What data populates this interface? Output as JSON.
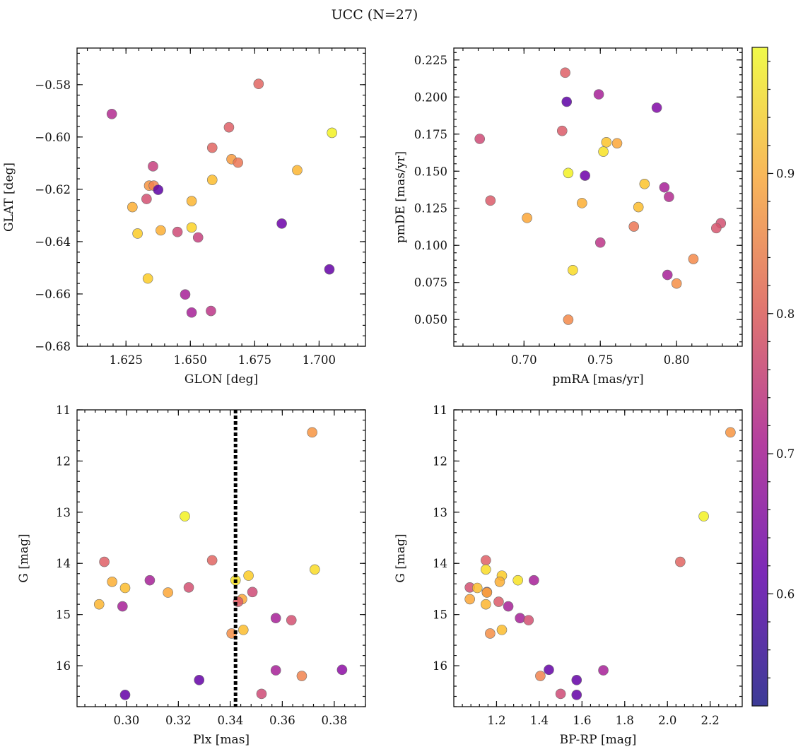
{
  "figure": {
    "suptitle": "UCC (N=27)"
  },
  "chart_data": [
    {
      "type": "scatter",
      "xlabel": "GLON [deg]",
      "ylabel": "GLAT [deg]",
      "xlim": [
        1.606,
        1.718
      ],
      "ylim": [
        -0.68,
        -0.566
      ],
      "y_inverted": false,
      "xticks": [
        1.625,
        1.65,
        1.675,
        1.7
      ],
      "xtick_labels": [
        "1.625",
        "1.650",
        "1.675",
        "1.700"
      ],
      "yticks": [
        -0.68,
        -0.66,
        -0.64,
        -0.62,
        -0.6,
        -0.58
      ],
      "ytick_labels": [
        "−0.68",
        "−0.66",
        "−0.64",
        "−0.62",
        "−0.60",
        "−0.58"
      ],
      "points": [
        {
          "x": 1.6195,
          "y": -0.5912,
          "c": 0.66
        },
        {
          "x": 1.6765,
          "y": -0.5797,
          "c": 0.77
        },
        {
          "x": 1.705,
          "y": -0.5984,
          "c": 0.98
        },
        {
          "x": 1.665,
          "y": -0.5963,
          "c": 0.76
        },
        {
          "x": 1.6585,
          "y": -0.6041,
          "c": 0.77
        },
        {
          "x": 1.666,
          "y": -0.6085,
          "c": 0.86
        },
        {
          "x": 1.6685,
          "y": -0.6098,
          "c": 0.8
        },
        {
          "x": 1.6355,
          "y": -0.6112,
          "c": 0.7
        },
        {
          "x": 1.6585,
          "y": -0.6164,
          "c": 0.91
        },
        {
          "x": 1.6915,
          "y": -0.6127,
          "c": 0.9
        },
        {
          "x": 1.634,
          "y": -0.6186,
          "c": 0.85
        },
        {
          "x": 1.6358,
          "y": -0.6186,
          "c": 0.82
        },
        {
          "x": 1.6375,
          "y": -0.6202,
          "c": 0.53
        },
        {
          "x": 1.633,
          "y": -0.6237,
          "c": 0.73
        },
        {
          "x": 1.6505,
          "y": -0.6245,
          "c": 0.9
        },
        {
          "x": 1.6275,
          "y": -0.6268,
          "c": 0.89
        },
        {
          "x": 1.6505,
          "y": -0.6346,
          "c": 0.94
        },
        {
          "x": 1.6385,
          "y": -0.6357,
          "c": 0.89
        },
        {
          "x": 1.645,
          "y": -0.6363,
          "c": 0.72
        },
        {
          "x": 1.6295,
          "y": -0.6369,
          "c": 0.93
        },
        {
          "x": 1.653,
          "y": -0.6384,
          "c": 0.7
        },
        {
          "x": 1.6855,
          "y": -0.6331,
          "c": 0.55
        },
        {
          "x": 1.704,
          "y": -0.6506,
          "c": 0.54
        },
        {
          "x": 1.6335,
          "y": -0.6541,
          "c": 0.93
        },
        {
          "x": 1.648,
          "y": -0.6602,
          "c": 0.64
        },
        {
          "x": 1.6505,
          "y": -0.6671,
          "c": 0.64
        },
        {
          "x": 1.658,
          "y": -0.6665,
          "c": 0.68
        }
      ]
    },
    {
      "type": "scatter",
      "xlabel": "pmRA [mas/yr]",
      "ylabel": "pmDE [mas/yr]",
      "xlim": [
        0.654,
        0.843
      ],
      "ylim": [
        0.032,
        0.233
      ],
      "y_inverted": false,
      "xticks": [
        0.7,
        0.75,
        0.8
      ],
      "xtick_labels": [
        "0.70",
        "0.75",
        "0.80"
      ],
      "yticks": [
        0.05,
        0.075,
        0.1,
        0.125,
        0.15,
        0.175,
        0.2,
        0.225
      ],
      "ytick_labels": [
        "0.050",
        "0.075",
        "0.100",
        "0.125",
        "0.150",
        "0.175",
        "0.200",
        "0.225"
      ],
      "points": [
        {
          "x": 0.727,
          "y": 0.2164,
          "c": 0.76
        },
        {
          "x": 0.749,
          "y": 0.2018,
          "c": 0.64
        },
        {
          "x": 0.728,
          "y": 0.1968,
          "c": 0.53
        },
        {
          "x": 0.787,
          "y": 0.1928,
          "c": 0.58
        },
        {
          "x": 0.725,
          "y": 0.1772,
          "c": 0.75
        },
        {
          "x": 0.671,
          "y": 0.1718,
          "c": 0.72
        },
        {
          "x": 0.754,
          "y": 0.1695,
          "c": 0.92
        },
        {
          "x": 0.761,
          "y": 0.1688,
          "c": 0.88
        },
        {
          "x": 0.752,
          "y": 0.1632,
          "c": 0.96
        },
        {
          "x": 0.729,
          "y": 0.1488,
          "c": 0.98
        },
        {
          "x": 0.74,
          "y": 0.147,
          "c": 0.55
        },
        {
          "x": 0.779,
          "y": 0.1414,
          "c": 0.92
        },
        {
          "x": 0.792,
          "y": 0.1391,
          "c": 0.64
        },
        {
          "x": 0.795,
          "y": 0.1327,
          "c": 0.66
        },
        {
          "x": 0.678,
          "y": 0.1302,
          "c": 0.75
        },
        {
          "x": 0.738,
          "y": 0.1285,
          "c": 0.89
        },
        {
          "x": 0.775,
          "y": 0.1258,
          "c": 0.91
        },
        {
          "x": 0.829,
          "y": 0.1149,
          "c": 0.73
        },
        {
          "x": 0.772,
          "y": 0.1127,
          "c": 0.8
        },
        {
          "x": 0.826,
          "y": 0.1116,
          "c": 0.74
        },
        {
          "x": 0.702,
          "y": 0.1185,
          "c": 0.88
        },
        {
          "x": 0.75,
          "y": 0.1019,
          "c": 0.68
        },
        {
          "x": 0.811,
          "y": 0.0908,
          "c": 0.83
        },
        {
          "x": 0.732,
          "y": 0.0833,
          "c": 0.95
        },
        {
          "x": 0.794,
          "y": 0.0801,
          "c": 0.64
        },
        {
          "x": 0.8,
          "y": 0.0743,
          "c": 0.84
        },
        {
          "x": 0.729,
          "y": 0.0499,
          "c": 0.83
        }
      ]
    },
    {
      "type": "scatter",
      "xlabel": "Plx [mas]",
      "ylabel": "G [mag]",
      "xlim": [
        0.281,
        0.392
      ],
      "ylim": [
        11.0,
        16.8
      ],
      "y_inverted": true,
      "vline": 0.342,
      "xticks": [
        0.3,
        0.32,
        0.34,
        0.36,
        0.38
      ],
      "xtick_labels": [
        "0.30",
        "0.32",
        "0.34",
        "0.36",
        "0.38"
      ],
      "yticks": [
        11,
        12,
        13,
        14,
        15,
        16
      ],
      "ytick_labels": [
        "11",
        "12",
        "13",
        "14",
        "15",
        "16"
      ],
      "points": [
        {
          "x": 0.3715,
          "y": 11.44,
          "c": 0.85
        },
        {
          "x": 0.3225,
          "y": 13.08,
          "c": 0.98
        },
        {
          "x": 0.2915,
          "y": 13.97,
          "c": 0.76
        },
        {
          "x": 0.333,
          "y": 13.94,
          "c": 0.77
        },
        {
          "x": 0.3725,
          "y": 14.12,
          "c": 0.95
        },
        {
          "x": 0.347,
          "y": 14.24,
          "c": 0.93
        },
        {
          "x": 0.342,
          "y": 14.33,
          "c": 0.96
        },
        {
          "x": 0.309,
          "y": 14.33,
          "c": 0.64
        },
        {
          "x": 0.2945,
          "y": 14.36,
          "c": 0.89
        },
        {
          "x": 0.2995,
          "y": 14.48,
          "c": 0.91
        },
        {
          "x": 0.324,
          "y": 14.47,
          "c": 0.73
        },
        {
          "x": 0.316,
          "y": 14.57,
          "c": 0.88
        },
        {
          "x": 0.3485,
          "y": 14.56,
          "c": 0.72
        },
        {
          "x": 0.3445,
          "y": 14.7,
          "c": 0.88
        },
        {
          "x": 0.343,
          "y": 14.75,
          "c": 0.75
        },
        {
          "x": 0.2895,
          "y": 14.8,
          "c": 0.9
        },
        {
          "x": 0.2985,
          "y": 14.84,
          "c": 0.64
        },
        {
          "x": 0.3575,
          "y": 15.07,
          "c": 0.64
        },
        {
          "x": 0.3635,
          "y": 15.11,
          "c": 0.73
        },
        {
          "x": 0.345,
          "y": 15.3,
          "c": 0.91
        },
        {
          "x": 0.3405,
          "y": 15.37,
          "c": 0.84
        },
        {
          "x": 0.3575,
          "y": 16.09,
          "c": 0.64
        },
        {
          "x": 0.383,
          "y": 16.08,
          "c": 0.6
        },
        {
          "x": 0.3675,
          "y": 16.2,
          "c": 0.82
        },
        {
          "x": 0.328,
          "y": 16.28,
          "c": 0.54
        },
        {
          "x": 0.2995,
          "y": 16.57,
          "c": 0.54
        },
        {
          "x": 0.352,
          "y": 16.55,
          "c": 0.72
        }
      ]
    },
    {
      "type": "scatter",
      "xlabel": "BP-RP [mag]",
      "ylabel": "G [mag]",
      "xlim": [
        1.0,
        2.35
      ],
      "ylim": [
        11.0,
        16.8
      ],
      "y_inverted": true,
      "xticks": [
        1.2,
        1.4,
        1.6,
        1.8,
        2.0,
        2.2
      ],
      "xtick_labels": [
        "1.2",
        "1.4",
        "1.6",
        "1.8",
        "2.0",
        "2.2"
      ],
      "yticks": [
        11,
        12,
        13,
        14,
        15,
        16
      ],
      "ytick_labels": [
        "11",
        "12",
        "13",
        "14",
        "15",
        "16"
      ],
      "points": [
        {
          "x": 2.295,
          "y": 11.44,
          "c": 0.85
        },
        {
          "x": 2.17,
          "y": 13.08,
          "c": 0.98
        },
        {
          "x": 2.06,
          "y": 13.97,
          "c": 0.77
        },
        {
          "x": 1.15,
          "y": 13.94,
          "c": 0.76
        },
        {
          "x": 1.15,
          "y": 14.12,
          "c": 0.95
        },
        {
          "x": 1.225,
          "y": 14.24,
          "c": 0.93
        },
        {
          "x": 1.3,
          "y": 14.33,
          "c": 0.96
        },
        {
          "x": 1.375,
          "y": 14.33,
          "c": 0.64
        },
        {
          "x": 1.215,
          "y": 14.36,
          "c": 0.89
        },
        {
          "x": 1.075,
          "y": 14.47,
          "c": 0.73
        },
        {
          "x": 1.11,
          "y": 14.48,
          "c": 0.91
        },
        {
          "x": 1.155,
          "y": 14.56,
          "c": 0.72
        },
        {
          "x": 1.155,
          "y": 14.57,
          "c": 0.88
        },
        {
          "x": 1.075,
          "y": 14.7,
          "c": 0.88
        },
        {
          "x": 1.21,
          "y": 14.75,
          "c": 0.75
        },
        {
          "x": 1.15,
          "y": 14.8,
          "c": 0.9
        },
        {
          "x": 1.255,
          "y": 14.84,
          "c": 0.64
        },
        {
          "x": 1.31,
          "y": 15.07,
          "c": 0.64
        },
        {
          "x": 1.35,
          "y": 15.11,
          "c": 0.73
        },
        {
          "x": 1.225,
          "y": 15.3,
          "c": 0.91
        },
        {
          "x": 1.17,
          "y": 15.37,
          "c": 0.84
        },
        {
          "x": 1.445,
          "y": 16.08,
          "c": 0.54
        },
        {
          "x": 1.7,
          "y": 16.09,
          "c": 0.64
        },
        {
          "x": 1.405,
          "y": 16.2,
          "c": 0.82
        },
        {
          "x": 1.575,
          "y": 16.28,
          "c": 0.54
        },
        {
          "x": 1.5,
          "y": 16.55,
          "c": 0.72
        },
        {
          "x": 1.575,
          "y": 16.57,
          "c": 0.54
        }
      ]
    }
  ],
  "colorbar": {
    "cmap": "plasma",
    "vmin": 0.52,
    "vmax": 0.99,
    "ticks": [
      0.6,
      0.7,
      0.8,
      0.9
    ],
    "tick_labels": [
      "0.6",
      "0.7",
      "0.8",
      "0.9"
    ]
  },
  "colors": {
    "point_edge": "#6e6e6e",
    "vline": "#000000"
  }
}
